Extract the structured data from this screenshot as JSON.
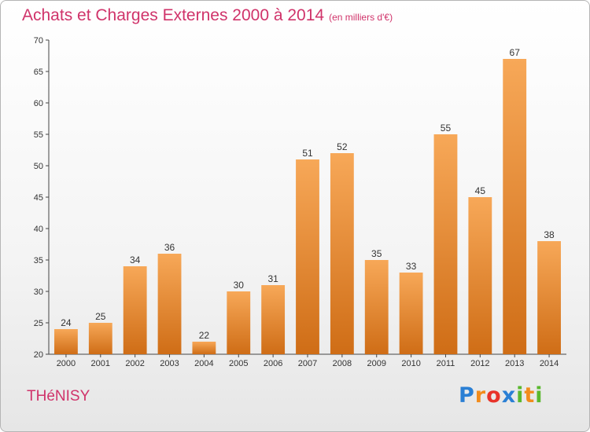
{
  "header": {
    "title": "Achats et Charges Externes 2000 à 2014",
    "subtitle": "(en milliers d'€)"
  },
  "footer": {
    "commune": "THéNISY",
    "logo": {
      "letters": [
        "P",
        "r",
        "o",
        "x",
        "i",
        "t",
        "i"
      ],
      "colors": [
        "#2a7fd4",
        "#f28c1c",
        "#e8332a",
        "#2a7fd4",
        "#5ab82e",
        "#f28c1c",
        "#5ab82e"
      ]
    }
  },
  "chart_data": {
    "type": "bar",
    "title": "Achats et Charges Externes 2000 à 2014",
    "subtitle": "(en milliers d'€)",
    "xlabel": "",
    "ylabel": "",
    "categories": [
      "2000",
      "2001",
      "2002",
      "2003",
      "2004",
      "2005",
      "2006",
      "2007",
      "2008",
      "2009",
      "2010",
      "2011",
      "2012",
      "2013",
      "2014"
    ],
    "values": [
      24,
      25,
      34,
      36,
      22,
      30,
      31,
      51,
      52,
      35,
      33,
      55,
      45,
      67,
      38
    ],
    "ylim": [
      20,
      70
    ],
    "yticks": [
      20,
      25,
      30,
      35,
      40,
      45,
      50,
      55,
      60,
      65,
      70
    ],
    "grid": false,
    "bar_color": "#f0902f"
  }
}
